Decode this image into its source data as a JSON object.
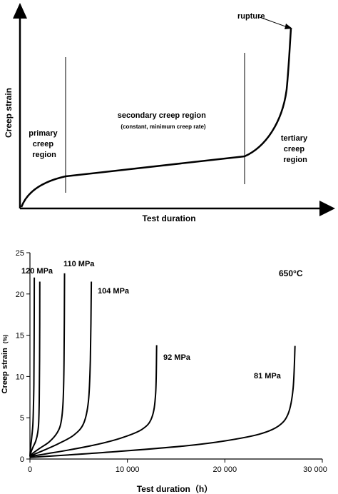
{
  "chart_data": [
    {
      "type": "line",
      "title": "",
      "xlabel": "Test duration",
      "ylabel": "Creep strain",
      "grid": false,
      "regions": [
        {
          "label_lines": [
            "primary",
            "creep",
            "region"
          ]
        },
        {
          "label_lines": [
            "secondary creep region",
            "(constant, minimum creep rate)"
          ]
        },
        {
          "label_lines": [
            "tertiary",
            "creep",
            "region"
          ]
        }
      ],
      "annotations": [
        "rupture"
      ]
    },
    {
      "type": "line",
      "title": "",
      "xlabel": "Test duration（h）",
      "ylabel": "Creep strain",
      "ylabel_unit": "(%)",
      "xlim": [
        0,
        30000
      ],
      "ylim": [
        0,
        25
      ],
      "x_ticks": [
        0,
        10000,
        20000,
        30000
      ],
      "x_tick_labels": [
        "0",
        "10 000",
        "20 000",
        "30 000"
      ],
      "y_ticks": [
        0,
        5,
        10,
        15,
        20,
        25
      ],
      "y_tick_labels": [
        "0",
        "5",
        "10",
        "15",
        "20",
        "25"
      ],
      "grid": false,
      "temperature_label": "650°C",
      "series": [
        {
          "name": "120 MPa",
          "x": [
            0,
            30,
            100,
            200,
            300,
            350,
            400,
            430,
            450
          ],
          "y": [
            0.3,
            0.9,
            1.8,
            2.8,
            4.2,
            6,
            9,
            15,
            22
          ]
        },
        {
          "name": "110 MPa",
          "x": [
            0,
            100,
            300,
            600,
            800,
            900,
            950,
            990,
            1010
          ],
          "y": [
            0.3,
            0.8,
            1.4,
            2.2,
            3.2,
            4.5,
            7,
            12,
            21.5
          ]
        },
        {
          "name": "104 MPa",
          "x": [
            0,
            300,
            1000,
            2000,
            2800,
            3200,
            3400,
            3500,
            3550
          ],
          "y": [
            0.3,
            0.7,
            1.3,
            2.1,
            3.2,
            4.5,
            7,
            12,
            22.5
          ]
        },
        {
          "name": "",
          "x": [
            0,
            500,
            1500,
            3000,
            4500,
            5500,
            6000,
            6200,
            6300
          ],
          "y": [
            0.3,
            0.6,
            1.1,
            1.9,
            2.9,
            4.3,
            7,
            12,
            21.5
          ]
        },
        {
          "name": "92 MPa",
          "x": [
            0,
            1500,
            4000,
            7000,
            9500,
            11500,
            12500,
            12900,
            13000
          ],
          "y": [
            0.3,
            0.6,
            1.1,
            1.8,
            2.6,
            3.6,
            5,
            8,
            13.8
          ]
        },
        {
          "name": "81 MPa",
          "x": [
            0,
            4000,
            10000,
            16000,
            20000,
            23500,
            25500,
            26500,
            27000,
            27200
          ],
          "y": [
            0.2,
            0.5,
            1.0,
            1.6,
            2.2,
            3.0,
            4.0,
            5.5,
            8.5,
            13.7
          ]
        }
      ]
    }
  ]
}
